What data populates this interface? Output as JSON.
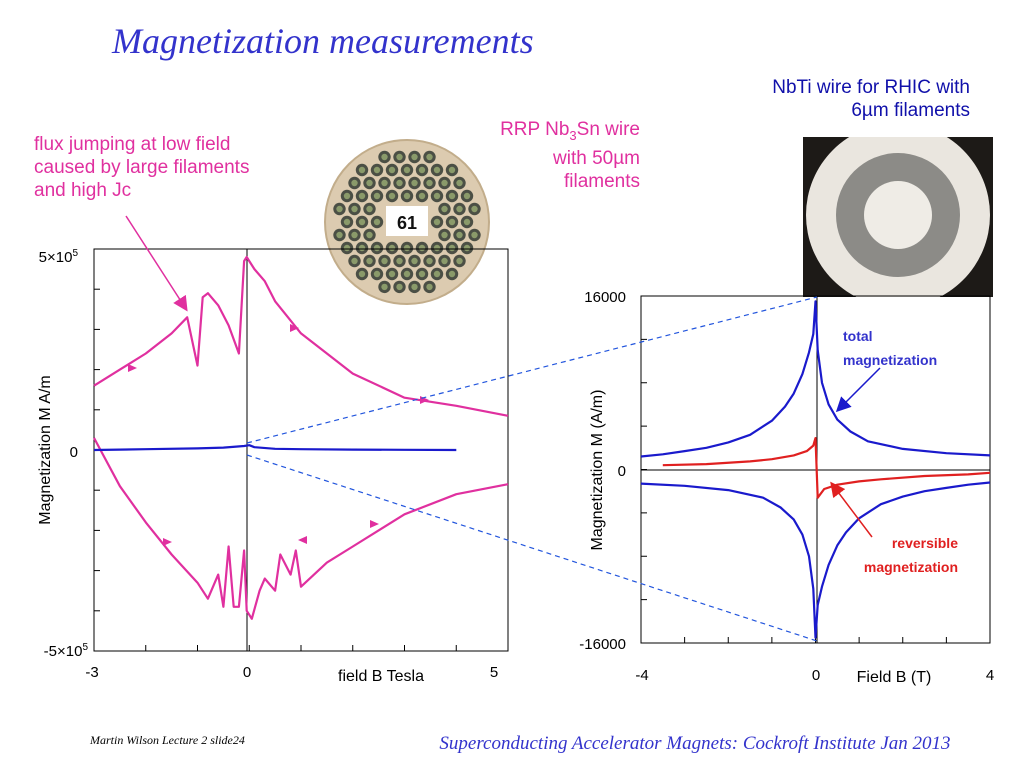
{
  "slide": {
    "title": "Magnetization measurements",
    "annotations": {
      "flux_jumping": "flux jumping at low field caused by large filaments and high Jc",
      "rrp_prefix": "RRP Nb",
      "rrp_sub": "3",
      "rrp_rest": "Sn wire with 50µm filaments",
      "nbti": "NbTi wire for RHIC with 6µm filaments"
    },
    "photo_labels": {
      "rrp_count": "61"
    },
    "footer": {
      "left": "Martin Wilson Lecture 2 slide24",
      "right": "Superconducting Accelerator Magnets:  Cockroft Institute Jan 2013"
    },
    "colors": {
      "title": "#3333cc",
      "magenta": "#e0309f",
      "blue": "#1a1acc",
      "red": "#e02020",
      "dashed": "#2255dd"
    }
  },
  "chart_data": [
    {
      "type": "line",
      "ylabel": "Magnetization M A/m",
      "xlabel": "field B Tesla",
      "xlim": [
        -3,
        5
      ],
      "ylim": [
        -500000,
        500000
      ],
      "x_ticks": [
        "-3",
        "0",
        "5"
      ],
      "y_ticks": [
        "5×10",
        "0",
        "-5×10"
      ],
      "y_tick_exp": "5",
      "series": [
        {
          "color": "#e0309f",
          "branch": "upper",
          "x": [
            -3.0,
            -2.5,
            -2.0,
            -1.5,
            -1.2,
            -1.0,
            -0.9,
            -0.8,
            -0.6,
            -0.4,
            -0.2,
            -0.1,
            -0.05,
            0.0,
            0.1,
            0.3,
            0.5,
            1.0,
            2.0,
            3.0,
            4.0,
            5.0
          ],
          "y": [
            160000,
            200000,
            240000,
            290000,
            330000,
            210000,
            380000,
            390000,
            360000,
            310000,
            240000,
            470000,
            480000,
            470000,
            450000,
            420000,
            370000,
            290000,
            190000,
            130000,
            110000,
            85000
          ]
        },
        {
          "color": "#e0309f",
          "branch": "lower",
          "x": [
            5.0,
            4.0,
            3.0,
            2.0,
            1.5,
            1.0,
            0.9,
            0.8,
            0.6,
            0.5,
            0.3,
            0.2,
            0.05,
            0.0,
            -0.05,
            -0.1,
            -0.2,
            -0.3,
            -0.4,
            -0.5,
            -0.6,
            -0.8,
            -1.0,
            -1.5,
            -2.0,
            -2.5,
            -3.0
          ],
          "y": [
            -85000,
            -110000,
            -160000,
            -240000,
            -280000,
            -340000,
            -250000,
            -310000,
            -260000,
            -350000,
            -320000,
            -350000,
            -420000,
            -410000,
            -400000,
            -250000,
            -390000,
            -390000,
            -240000,
            -390000,
            -310000,
            -370000,
            -330000,
            -260000,
            -180000,
            -90000,
            30000
          ]
        },
        {
          "color": "#1a1acc",
          "branch": "small-filament loop",
          "x": [
            -3.0,
            -2.0,
            -1.0,
            -0.5,
            -0.1,
            0.0,
            0.1,
            0.5,
            1.0,
            2.0,
            3.0,
            4.0
          ],
          "y": [
            0,
            2000,
            4000,
            6000,
            10000,
            12000,
            7000,
            3000,
            2000,
            1000,
            500,
            0
          ]
        }
      ]
    },
    {
      "type": "line",
      "ylabel": "Magnetization M (A/m)",
      "xlabel": "Field B (T)",
      "xlim": [
        -4,
        4
      ],
      "ylim": [
        -16000,
        16000
      ],
      "x_ticks": [
        "-4",
        "0",
        "4"
      ],
      "y_ticks": [
        "16000",
        "0",
        "-16000"
      ],
      "series": [
        {
          "name": "total magnetization",
          "color": "#1a1acc",
          "x": [
            -4.0,
            -3.5,
            -3.0,
            -2.5,
            -2.0,
            -1.5,
            -1.0,
            -0.7,
            -0.5,
            -0.3,
            -0.15,
            -0.05,
            0.0,
            0.05,
            0.15,
            0.3,
            0.5,
            0.8,
            1.2,
            2.0,
            3.0,
            4.0
          ],
          "y": [
            1200,
            1400,
            1700,
            2000,
            2500,
            3200,
            4500,
            5800,
            7000,
            8800,
            10800,
            12500,
            15500,
            11000,
            8000,
            6000,
            4600,
            3500,
            2600,
            1900,
            1500,
            1300
          ]
        },
        {
          "name": "total magnetization (descending)",
          "color": "#1a1acc",
          "x": [
            4.0,
            3.5,
            3.0,
            2.5,
            2.0,
            1.5,
            1.0,
            0.7,
            0.5,
            0.3,
            0.15,
            0.05,
            0.0,
            -0.05,
            -0.15,
            -0.3,
            -0.5,
            -0.8,
            -1.2,
            -2.0,
            -3.0,
            -4.0
          ],
          "y": [
            -1200,
            -1400,
            -1700,
            -2000,
            -2500,
            -3200,
            -4500,
            -5800,
            -7000,
            -8800,
            -10800,
            -12500,
            -15500,
            -11000,
            -8000,
            -6000,
            -4600,
            -3500,
            -2600,
            -1900,
            -1500,
            -1300
          ]
        },
        {
          "name": "reversible magnetization",
          "color": "#e02020",
          "x": [
            -3.5,
            -2.5,
            -1.5,
            -1.0,
            -0.5,
            -0.2,
            -0.05,
            0.0,
            0.05,
            0.2,
            0.5,
            1.0,
            1.5,
            2.5,
            3.5,
            4.0
          ],
          "y": [
            400,
            500,
            750,
            950,
            1300,
            1700,
            2200,
            2900,
            -2600,
            -1800,
            -1400,
            -1100,
            -900,
            -600,
            -450,
            -300
          ]
        }
      ],
      "annotations": [
        "total",
        "magnetization",
        "reversible",
        "magnetization"
      ]
    }
  ]
}
